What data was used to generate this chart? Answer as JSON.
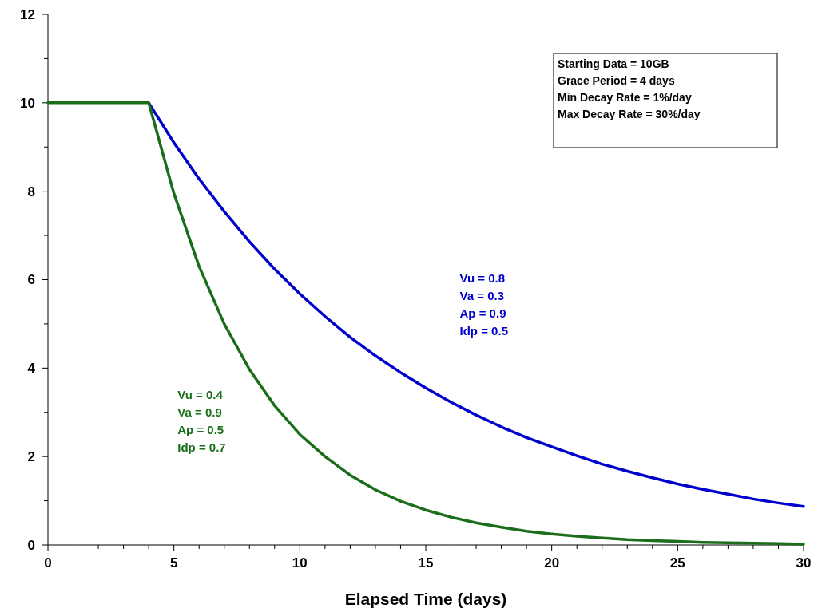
{
  "chart_data": {
    "type": "line",
    "xlabel": "Elapsed Time (days)",
    "x": [
      0,
      1,
      2,
      3,
      4,
      5,
      6,
      7,
      8,
      9,
      10,
      11,
      12,
      13,
      14,
      15,
      16,
      17,
      18,
      19,
      20,
      21,
      22,
      23,
      24,
      25,
      26,
      27,
      28,
      29,
      30
    ],
    "series": [
      {
        "name": "Vu = 0.8\nVa = 0.3\nAp = 0.9\nIdp = 0.5",
        "color": "#0000cc",
        "values": [
          null,
          null,
          null,
          null,
          10,
          9.1,
          8.28,
          7.54,
          6.86,
          6.24,
          5.68,
          5.17,
          4.7,
          4.28,
          3.9,
          3.55,
          3.23,
          2.94,
          2.67,
          2.43,
          2.22,
          2.02,
          1.83,
          1.67,
          1.52,
          1.38,
          1.26,
          1.15,
          1.04,
          0.95,
          0.87
        ]
      },
      {
        "name": "Vu = 0.4\nVa = 0.9\nAp = 0.5\nIdp = 0.7",
        "color": "#1a6e1a",
        "values": [
          10,
          10,
          10,
          10,
          10,
          7.95,
          6.3,
          5.0,
          3.97,
          3.15,
          2.5,
          2.0,
          1.58,
          1.25,
          0.99,
          0.79,
          0.63,
          0.5,
          0.4,
          0.31,
          0.25,
          0.2,
          0.16,
          0.12,
          0.1,
          0.08,
          0.06,
          0.05,
          0.04,
          0.03,
          0.02
        ]
      }
    ],
    "xlim": [
      0,
      30
    ],
    "xticks": [
      0,
      {
        "value": 1,
        "label": null
      },
      {
        "value": 2,
        "label": null
      },
      {
        "value": 3,
        "label": null
      },
      {
        "value": 4,
        "label": null
      },
      5,
      {
        "value": 6,
        "label": null
      },
      {
        "value": 7,
        "label": null
      },
      {
        "value": 8,
        "label": null
      },
      {
        "value": 9,
        "label": null
      },
      10,
      {
        "value": 11,
        "label": null
      },
      {
        "value": 12,
        "label": null
      },
      {
        "value": 13,
        "label": null
      },
      {
        "value": 14,
        "label": null
      },
      15,
      {
        "value": 16,
        "label": null
      },
      {
        "value": 17,
        "label": null
      },
      {
        "value": 18,
        "label": null
      },
      {
        "value": 19,
        "label": null
      },
      20,
      {
        "value": 21,
        "label": null
      },
      {
        "value": 22,
        "label": null
      },
      {
        "value": 23,
        "label": null
      },
      {
        "value": 24,
        "label": null
      },
      25,
      {
        "value": 26,
        "label": null
      },
      {
        "value": 27,
        "label": null
      },
      {
        "value": 28,
        "label": null
      },
      {
        "value": 29,
        "label": null
      },
      30
    ],
    "ylim": [
      0,
      12
    ],
    "yticks": [
      0,
      {
        "value": 1,
        "label": null
      },
      2,
      {
        "value": 3,
        "label": null
      },
      4,
      {
        "value": 5,
        "label": null
      },
      6,
      {
        "value": 7,
        "label": null
      },
      8,
      {
        "value": 9,
        "label": null
      },
      10,
      {
        "value": 11,
        "label": null
      },
      12
    ],
    "annotations": [
      "Starting Data = 10GB",
      "Grace Period = 4 days",
      "Min Decay Rate = 1%/day",
      "Max Decay Rate = 30%/day"
    ],
    "grid": false,
    "marker": "none",
    "line_style": "solid"
  }
}
